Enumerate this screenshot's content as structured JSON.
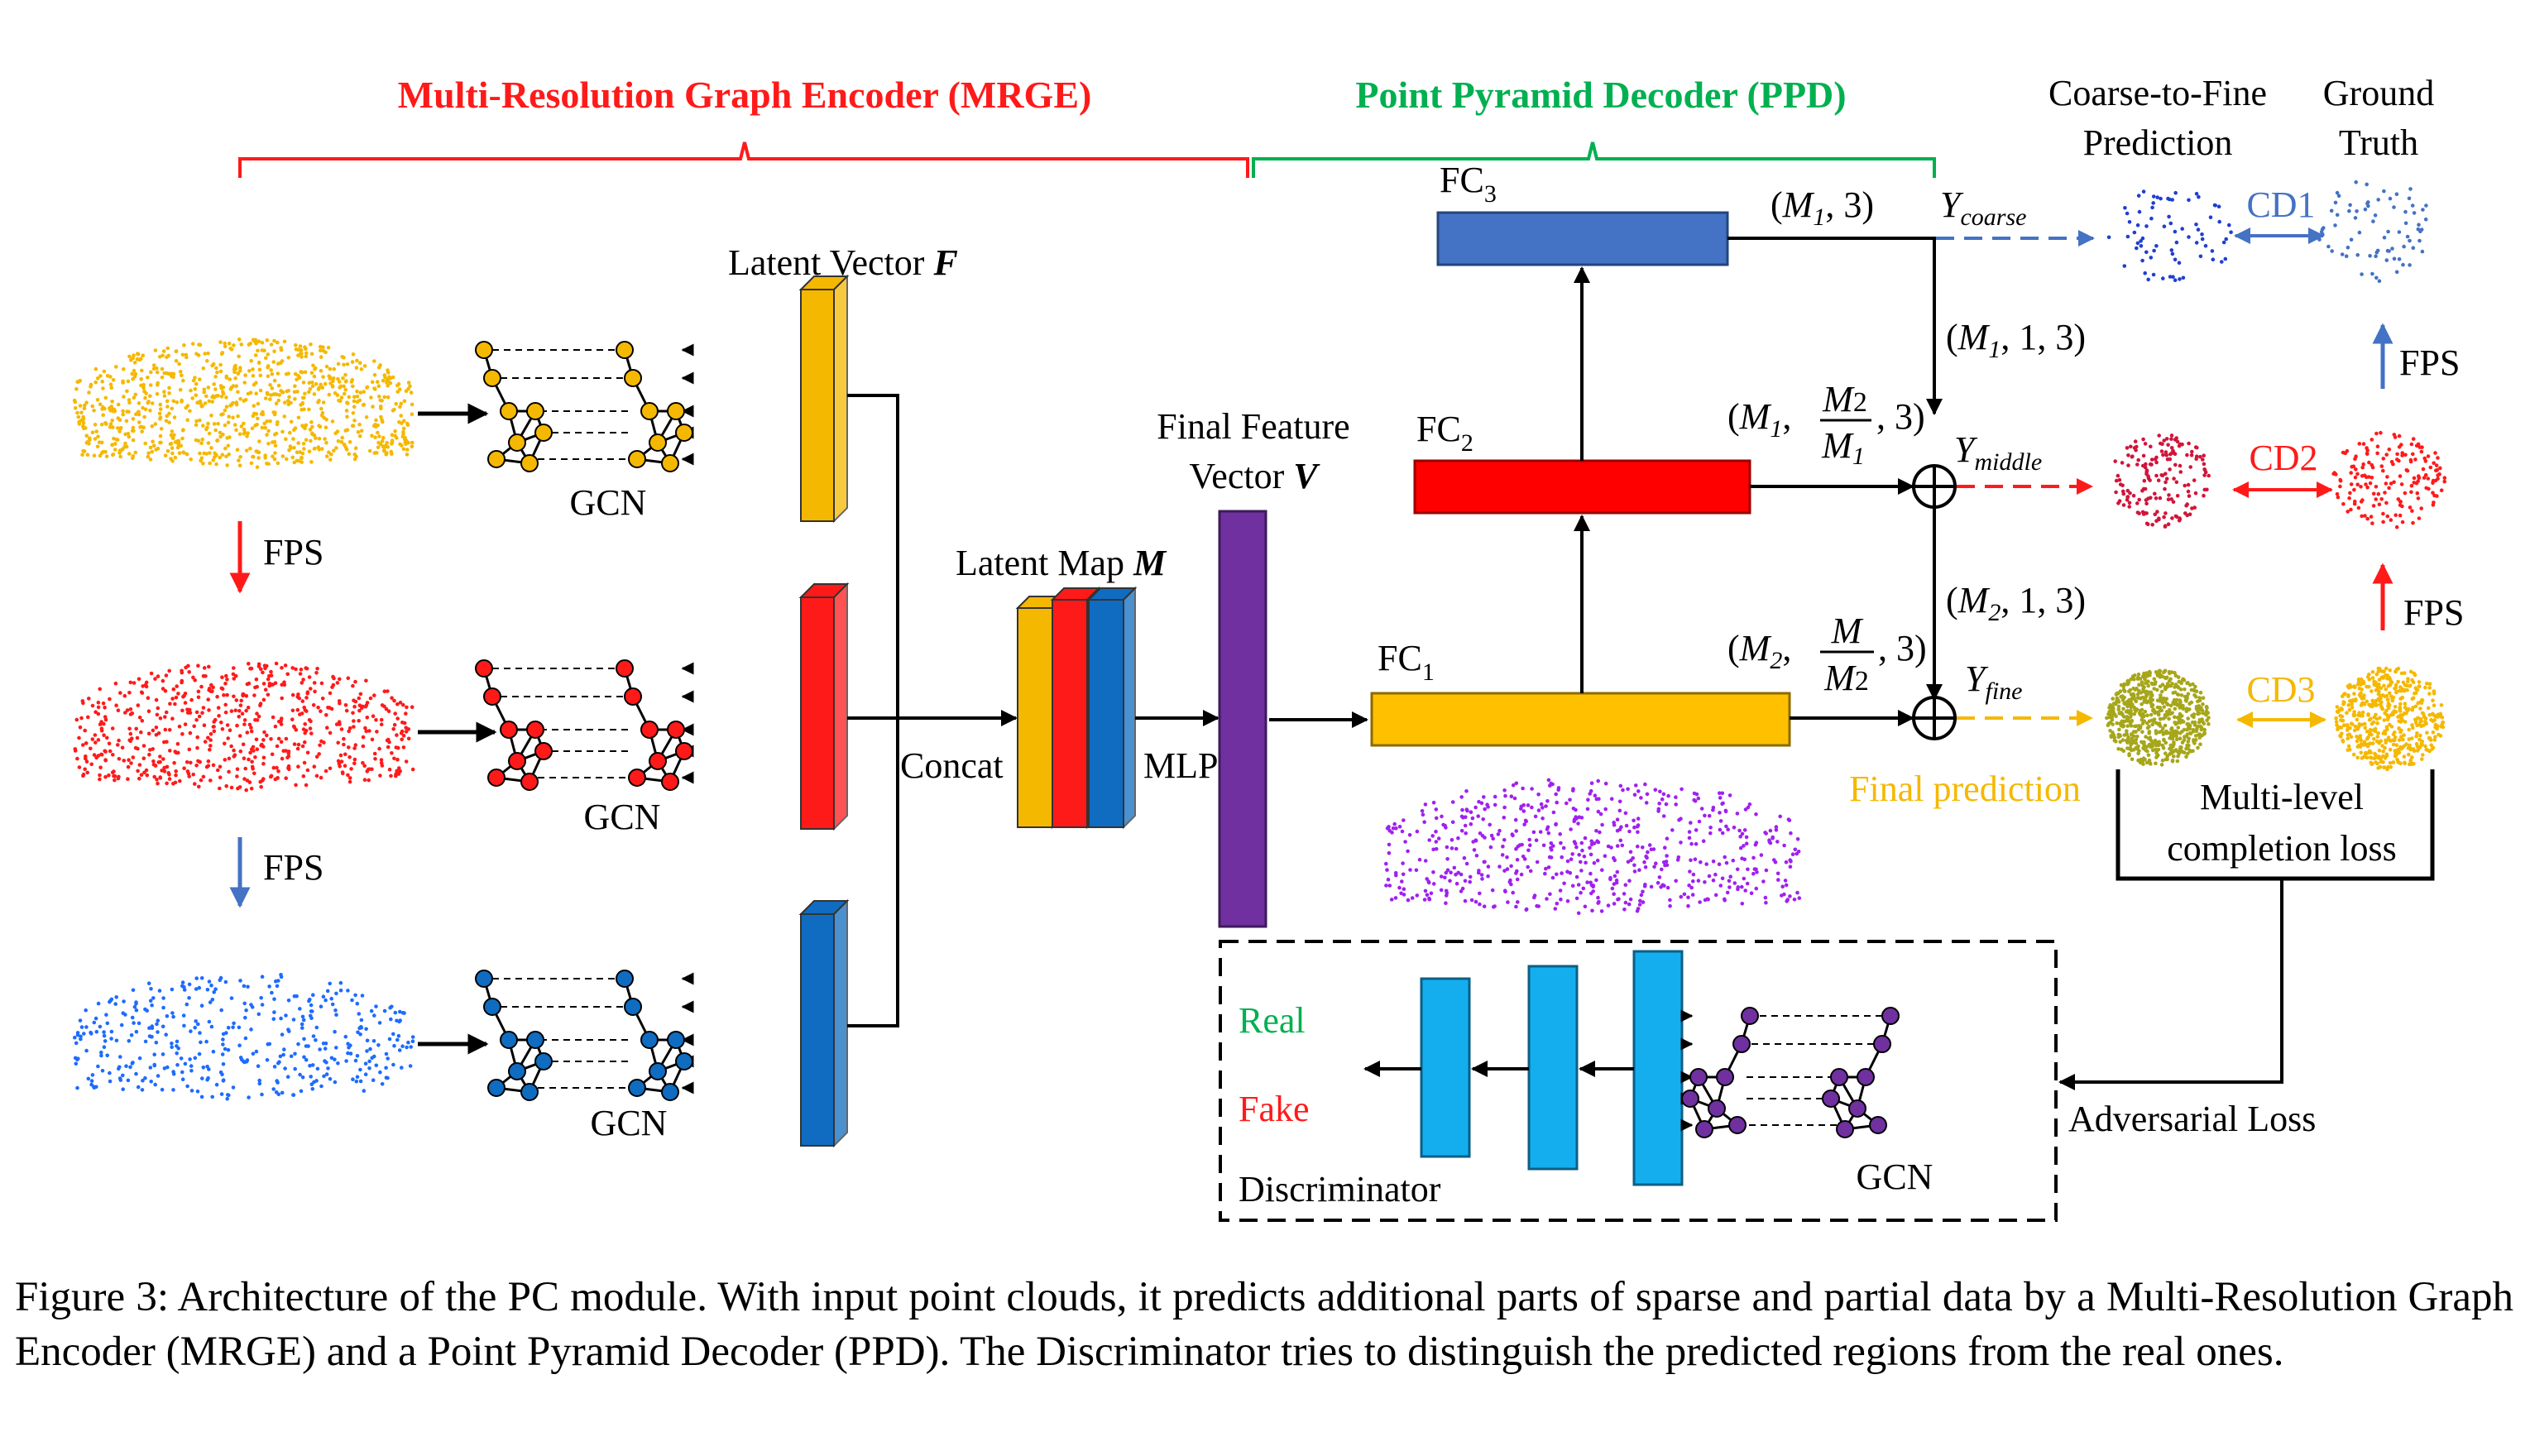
{
  "figure": {
    "encoder_title": "Multi-Resolution Graph Encoder (MRGE)",
    "decoder_title": "Point Pyramid Decoder (PPD)",
    "latent_vector": {
      "text": "Latent Vector ",
      "symbol": "F"
    },
    "latent_map": {
      "text": "Latent Map ",
      "symbol": "M"
    },
    "final_feature": {
      "line1": "Final Feature",
      "line2": "Vector ",
      "symbol": "V"
    },
    "fps": "FPS",
    "gcn": "GCN",
    "concat": "Concat",
    "mlp": "MLP",
    "fc": "FC",
    "fc1_sub": "1",
    "fc2_sub": "2",
    "fc3_sub": "3",
    "coarse_to_fine": [
      "Coarse-to-Fine",
      "Prediction"
    ],
    "ground_truth": [
      "Ground",
      "Truth"
    ],
    "cd1": "CD1",
    "cd2": "CD2",
    "cd3": "CD3",
    "y": "Y",
    "y_coarse_sub": "coarse",
    "y_middle_sub": "middle",
    "y_fine_sub": "fine",
    "m": "M",
    "m1_sub": "1",
    "m2_sub": "2",
    "three": "3",
    "one": "1",
    "final_prediction": "Final prediction",
    "completion_loss": [
      "Multi-level",
      "completion loss"
    ],
    "adversarial_loss": "Adversarial Loss",
    "real": "Real",
    "fake": "Fake",
    "discriminator": "Discriminator",
    "colors": {
      "orange": "#F5B800",
      "red": "#FF1A1A",
      "blue": "#0F6CC0",
      "purple": "#7030A0",
      "lightblue": "#14AEEF",
      "fc3": "#4472C4",
      "green": "#00B050",
      "yellow_text": "#F5B800",
      "olive": "#A6A61A"
    }
  },
  "caption": "Figure 3: Architecture of the PC module. With input point clouds, it predicts additional parts of sparse and partial data by a Multi-Resolution Graph Encoder (MRGE) and a Point Pyramid Decoder (PPD). The Discriminator tries to distinguish the predicted regions from the real ones."
}
